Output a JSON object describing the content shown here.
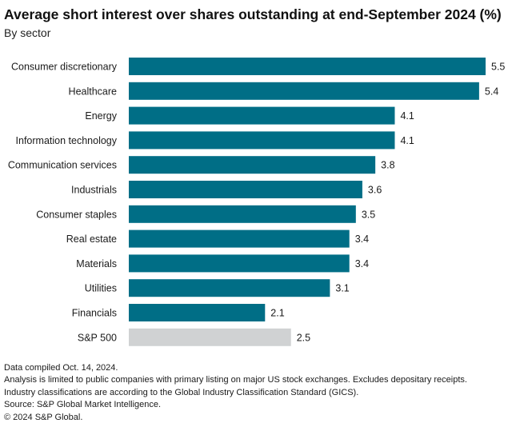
{
  "chart_data": {
    "type": "bar",
    "orientation": "horizontal",
    "title": "Average short interest over shares outstanding at end-September 2024 (%)",
    "subtitle": "By sector",
    "xlabel": "",
    "ylabel": "",
    "xlim": [
      0,
      5.5
    ],
    "grid": false,
    "categories": [
      "Consumer discretionary",
      "Healthcare",
      "Energy",
      "Information technology",
      "Communication services",
      "Industrials",
      "Consumer staples",
      "Real estate",
      "Materials",
      "Utilities",
      "Financials",
      "S&P 500"
    ],
    "values": [
      5.5,
      5.4,
      4.1,
      4.1,
      3.8,
      3.6,
      3.5,
      3.4,
      3.4,
      3.1,
      2.1,
      2.5
    ],
    "colors": {
      "sector": "#006e86",
      "benchmark": "#d0d2d3"
    },
    "benchmark_category": "S&P 500"
  },
  "notes": [
    "Data compiled Oct. 14, 2024.",
    "Analysis is limited to public companies with primary listing on major US stock exchanges. Excludes depositary receipts.",
    "Industry classifications are according to the Global Industry Classification Standard (GICS).",
    "Source: S&P Global Market Intelligence.",
    "© 2024 S&P Global."
  ]
}
